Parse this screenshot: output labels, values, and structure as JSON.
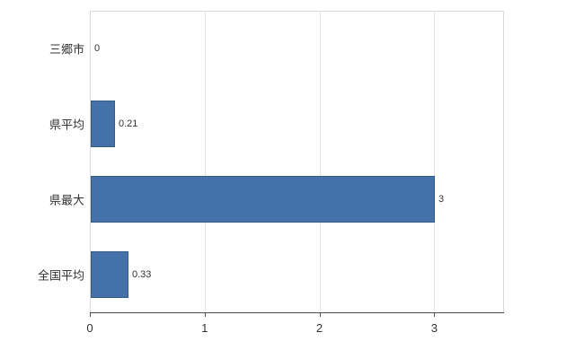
{
  "chart_data": {
    "type": "bar",
    "orientation": "horizontal",
    "title": "",
    "xlabel": "",
    "ylabel": "",
    "categories": [
      "三郷市",
      "県平均",
      "県最大",
      "全国平均"
    ],
    "values": [
      0,
      0.21,
      3,
      0.33
    ],
    "value_labels": [
      "0",
      "0.21",
      "3",
      "0.33"
    ],
    "xlim": [
      0,
      3.6
    ],
    "xticks": [
      0,
      1,
      2,
      3
    ],
    "xtick_labels": [
      "0",
      "1",
      "2",
      "3"
    ],
    "grid": true,
    "legend": false,
    "bar_color": "#4472a8",
    "bar_border_color": "#365c86",
    "axis_color": "#4d4d4d",
    "gridline_color": "#e3e3e3",
    "background_color": "#ffffff"
  }
}
